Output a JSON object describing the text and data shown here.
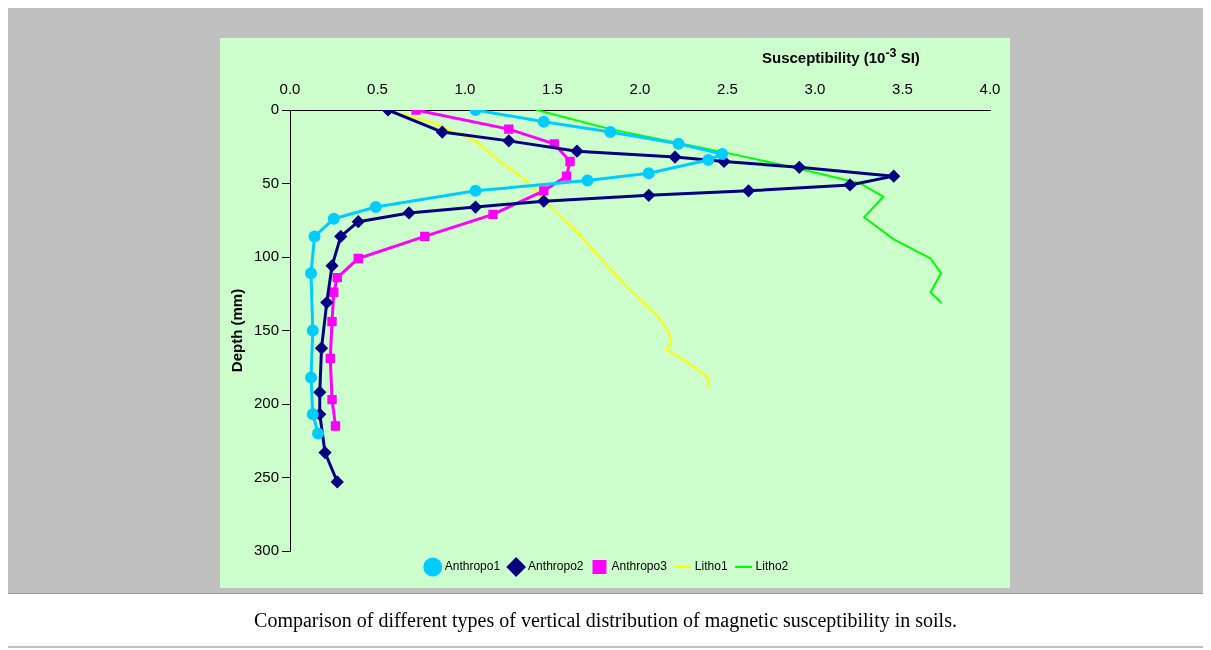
{
  "chart_data": {
    "type": "line",
    "xlabel": "Susceptibility (10$^{-3}$ SI)",
    "ylabel": "Depth (mm)",
    "annotations": [
      "Comparison of different types of vertical distribution of magnetic susceptibility in soils."
    ],
    "xlim": [
      0,
      4
    ],
    "xticks": [
      {
        "value": 0,
        "label": "0.0"
      },
      {
        "value": 0.5,
        "label": "0.5"
      },
      {
        "value": 1,
        "label": "1.0"
      },
      {
        "value": 1.5,
        "label": "1.5"
      },
      {
        "value": 2,
        "label": "2.0"
      },
      {
        "value": 2.5,
        "label": "2.5"
      },
      {
        "value": 3,
        "label": "3.0"
      },
      {
        "value": 3.5,
        "label": "3.5"
      },
      {
        "value": 4,
        "label": "4.0"
      }
    ],
    "ylim": [
      300,
      0
    ],
    "yticks": [
      0,
      50,
      100,
      150,
      200,
      250,
      300
    ],
    "grid": false,
    "legend": "bottom",
    "series": [
      {
        "name": "Anthropo1",
        "color": "#00ccff",
        "marker": "circle",
        "x": [
          1.06,
          1.45,
          1.83,
          2.22,
          2.47,
          2.39,
          2.05,
          1.7,
          1.06,
          0.49,
          0.25,
          0.14,
          0.12,
          0.13,
          0.12,
          0.13,
          0.16
        ],
        "values": [
          0,
          8,
          15,
          23,
          30,
          34,
          43,
          48,
          55,
          66,
          74,
          86,
          111,
          150,
          182,
          207,
          220
        ]
      },
      {
        "name": "Anthropo2",
        "color": "#000080",
        "marker": "diamond",
        "x": [
          0.56,
          0.87,
          1.25,
          1.64,
          2.2,
          2.48,
          2.91,
          3.45,
          3.2,
          2.62,
          2.05,
          1.45,
          1.06,
          0.68,
          0.39,
          0.29,
          0.24,
          0.21,
          0.18,
          0.17,
          0.17,
          0.2,
          0.27
        ],
        "values": [
          0,
          15,
          21,
          28,
          32,
          35,
          39,
          45,
          51,
          55,
          58,
          62,
          66,
          70,
          76,
          86,
          106,
          131,
          162,
          192,
          207,
          233,
          253
        ]
      },
      {
        "name": "Anthropo3",
        "color": "#ff00ff",
        "marker": "square",
        "x": [
          0.72,
          1.25,
          1.51,
          1.6,
          1.58,
          1.45,
          1.16,
          0.77,
          0.39,
          0.27,
          0.25,
          0.24,
          0.23,
          0.24,
          0.26
        ],
        "values": [
          0,
          13,
          23,
          35,
          45,
          55,
          71,
          86,
          101,
          114,
          124,
          144,
          169,
          197,
          215
        ]
      },
      {
        "name": "Litho1",
        "color": "#ffff00",
        "marker": "none",
        "x": [
          0.55,
          0.8,
          1.06,
          1.2,
          1.35,
          1.49,
          1.64,
          1.76,
          1.93,
          2.1,
          2.16,
          2.18,
          2.15,
          2.25,
          2.39,
          2.39
        ],
        "values": [
          0,
          8,
          21,
          35,
          48,
          66,
          83,
          99,
          121,
          140,
          150,
          158,
          163,
          170,
          182,
          188
        ]
      },
      {
        "name": "Litho2",
        "color": "#00ff00",
        "marker": "none",
        "x": [
          1.41,
          1.83,
          2.49,
          2.91,
          3.26,
          3.39,
          3.28,
          3.45,
          3.66,
          3.72,
          3.66,
          3.72
        ],
        "values": [
          0,
          13,
          29,
          40,
          50,
          59,
          73,
          88,
          101,
          111,
          124,
          131
        ]
      }
    ]
  }
}
